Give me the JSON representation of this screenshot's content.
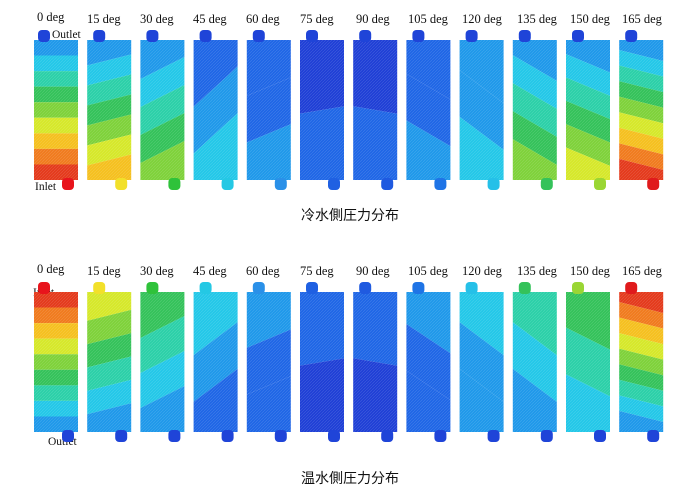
{
  "angles": [
    "0 deg",
    "15 deg",
    "30 deg",
    "45 deg",
    "60 deg",
    "75 deg",
    "90 deg",
    "105 deg",
    "120 deg",
    "135 deg",
    "150 deg",
    "165 deg"
  ],
  "colors": {
    "scale": [
      "#1f3fd6",
      "#1f66e6",
      "#1f98ea",
      "#23c7e8",
      "#2bd0a8",
      "#34c25a",
      "#7ed23a",
      "#d6e82a",
      "#f5c01f",
      "#f07b1e",
      "#e43a1c",
      "#d2161a"
    ]
  },
  "panels": [
    {
      "caption": "冷水側圧力分布",
      "outlet_label": "Outlet",
      "inlet_label": "Inlet",
      "plates": [
        {
          "bands": [
            2,
            3,
            4,
            5,
            6,
            7,
            8,
            9,
            10
          ],
          "tilt": 0,
          "top_port": "#1f44d8",
          "bottom_port": "#e8141c"
        },
        {
          "bands": [
            2,
            3,
            4,
            5,
            6,
            7,
            8
          ],
          "tilt": -6,
          "top_port": "#1f44d8",
          "bottom_port": "#f2e02a"
        },
        {
          "bands": [
            2,
            3,
            4,
            5,
            6
          ],
          "tilt": -12,
          "top_port": "#1f44d8",
          "bottom_port": "#2fc23a"
        },
        {
          "bands": [
            1,
            2,
            3
          ],
          "tilt": -22,
          "top_port": "#1f44d8",
          "bottom_port": "#24c8e4"
        },
        {
          "bands": [
            1,
            1,
            2
          ],
          "tilt": -10,
          "top_port": "#1f44d8",
          "bottom_port": "#2a90e8"
        },
        {
          "bands": [
            0,
            1
          ],
          "tilt": -4,
          "top_port": "#1f44d8",
          "bottom_port": "#1f60e2"
        },
        {
          "bands": [
            0,
            1
          ],
          "tilt": 4,
          "top_port": "#1f44d8",
          "bottom_port": "#1f5ae0"
        },
        {
          "bands": [
            1,
            1,
            2
          ],
          "tilt": 14,
          "top_port": "#1f44d8",
          "bottom_port": "#1f74e6"
        },
        {
          "bands": [
            2,
            2,
            3
          ],
          "tilt": 18,
          "top_port": "#1f44d8",
          "bottom_port": "#25c0e8"
        },
        {
          "bands": [
            2,
            3,
            4,
            5,
            6
          ],
          "tilt": 14,
          "top_port": "#1f44d8",
          "bottom_port": "#34c25a"
        },
        {
          "bands": [
            2,
            3,
            4,
            5,
            6,
            7
          ],
          "tilt": 10,
          "top_port": "#1f44d8",
          "bottom_port": "#9ad634"
        },
        {
          "bands": [
            2,
            3,
            4,
            5,
            6,
            7,
            8,
            9,
            10
          ],
          "tilt": 6,
          "top_port": "#1f44d8",
          "bottom_port": "#e01a1c"
        }
      ]
    },
    {
      "caption": "温水側圧力分布",
      "outlet_label": "Outlet",
      "inlet_label": "Inlet",
      "plates": [
        {
          "bands": [
            10,
            9,
            8,
            7,
            6,
            5,
            4,
            3,
            2
          ],
          "tilt": 0,
          "top_port": "#e8141c",
          "bottom_port": "#1f44d8"
        },
        {
          "bands": [
            7,
            6,
            5,
            4,
            3,
            2
          ],
          "tilt": -6,
          "top_port": "#f2e02a",
          "bottom_port": "#1f44d8"
        },
        {
          "bands": [
            5,
            4,
            3,
            2
          ],
          "tilt": -12,
          "top_port": "#2fc23a",
          "bottom_port": "#1f44d8"
        },
        {
          "bands": [
            3,
            2,
            1
          ],
          "tilt": -18,
          "top_port": "#24c8e4",
          "bottom_port": "#1f44d8"
        },
        {
          "bands": [
            2,
            1,
            1
          ],
          "tilt": -10,
          "top_port": "#2a90e8",
          "bottom_port": "#1f44d8"
        },
        {
          "bands": [
            1,
            0
          ],
          "tilt": -4,
          "top_port": "#1f60e2",
          "bottom_port": "#1f44d8"
        },
        {
          "bands": [
            1,
            0
          ],
          "tilt": 4,
          "top_port": "#1f5ae0",
          "bottom_port": "#1f44d8"
        },
        {
          "bands": [
            2,
            1,
            1
          ],
          "tilt": 16,
          "top_port": "#1f74e6",
          "bottom_port": "#1f44d8"
        },
        {
          "bands": [
            3,
            2,
            2
          ],
          "tilt": 18,
          "top_port": "#25c0e8",
          "bottom_port": "#1f44d8"
        },
        {
          "bands": [
            4,
            3,
            2
          ],
          "tilt": 18,
          "top_port": "#34c25a",
          "bottom_port": "#1f44d8"
        },
        {
          "bands": [
            5,
            4,
            3
          ],
          "tilt": 12,
          "top_port": "#9ad634",
          "bottom_port": "#1f44d8"
        },
        {
          "bands": [
            10,
            9,
            8,
            7,
            6,
            5,
            4,
            3,
            2
          ],
          "tilt": 6,
          "top_port": "#e01a1c",
          "bottom_port": "#1f44d8"
        }
      ]
    }
  ]
}
